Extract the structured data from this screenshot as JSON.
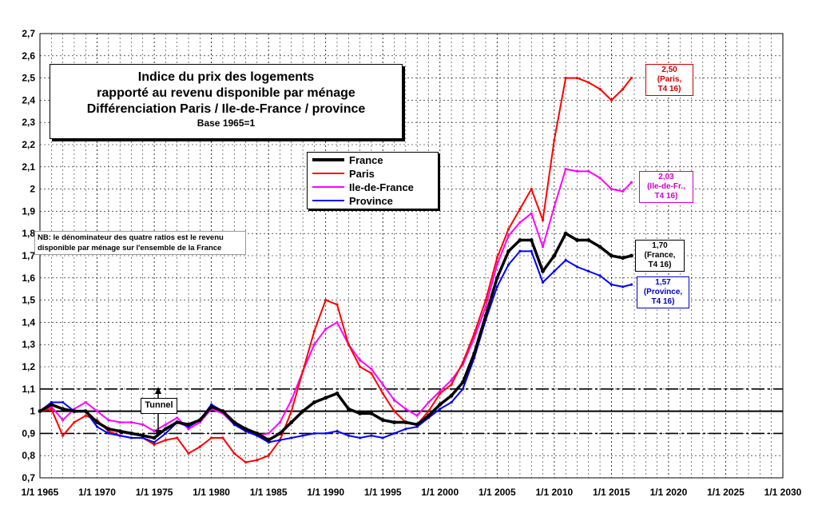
{
  "chart_data": {
    "type": "line",
    "title": "Indice du prix des logements rapporté au revenu disponible par ménage Différenciation Paris / Ile-de-France / province",
    "title_lines": [
      "Indice du prix des logements",
      "rapporté au revenu disponible par ménage",
      "Différenciation Paris / Ile-de-France / province"
    ],
    "subtitle": "Base 1965=1",
    "xlabel": "",
    "ylabel": "",
    "xlim": [
      1965,
      2030
    ],
    "ylim": [
      0.7,
      2.7
    ],
    "ytick_step": 0.1,
    "ytick_labels": [
      "0,7",
      "0,8",
      "0,9",
      "1",
      "1,1",
      "1,2",
      "1,3",
      "1,4",
      "1,5",
      "1,6",
      "1,7",
      "1,8",
      "1,9",
      "2",
      "2,1",
      "2,2",
      "2,3",
      "2,4",
      "2,5",
      "2,6",
      "2,7"
    ],
    "xtick_values": [
      1965,
      1970,
      1975,
      1980,
      1985,
      1990,
      1995,
      2000,
      2005,
      2010,
      2015,
      2020,
      2025,
      2030
    ],
    "xtick_labels": [
      "1/1 1965",
      "1/1 1970",
      "1/1 1975",
      "1/1 1980",
      "1/1 1985",
      "1/1 1990",
      "1/1 1995",
      "1/1 2000",
      "1/1 2005",
      "1/1 2010",
      "1/1 2015",
      "1/1 2020",
      "1/1 2025",
      "1/1 2030"
    ],
    "grid": true,
    "legend_position": "upper-center",
    "reference_lines": [
      {
        "y": 1.0,
        "style": "solid"
      },
      {
        "y": 1.1,
        "style": "dash-dot"
      },
      {
        "y": 0.9,
        "style": "dash-dot"
      }
    ],
    "series": [
      {
        "name": "France",
        "color": "#000000",
        "width": 3.5,
        "points": [
          [
            1965,
            1.0
          ],
          [
            1966,
            1.03
          ],
          [
            1967,
            1.01
          ],
          [
            1968,
            1.0
          ],
          [
            1969,
            1.0
          ],
          [
            1970,
            0.95
          ],
          [
            1971,
            0.92
          ],
          [
            1972,
            0.91
          ],
          [
            1973,
            0.9
          ],
          [
            1974,
            0.89
          ],
          [
            1975,
            0.88
          ],
          [
            1976,
            0.92
          ],
          [
            1977,
            0.95
          ],
          [
            1978,
            0.94
          ],
          [
            1979,
            0.96
          ],
          [
            1980,
            1.02
          ],
          [
            1981,
            1.0
          ],
          [
            1982,
            0.95
          ],
          [
            1983,
            0.92
          ],
          [
            1984,
            0.9
          ],
          [
            1985,
            0.87
          ],
          [
            1986,
            0.9
          ],
          [
            1987,
            0.95
          ],
          [
            1988,
            1.0
          ],
          [
            1989,
            1.04
          ],
          [
            1990,
            1.06
          ],
          [
            1991,
            1.08
          ],
          [
            1992,
            1.01
          ],
          [
            1993,
            0.99
          ],
          [
            1994,
            0.99
          ],
          [
            1995,
            0.96
          ],
          [
            1996,
            0.95
          ],
          [
            1997,
            0.95
          ],
          [
            1998,
            0.94
          ],
          [
            1999,
            0.98
          ],
          [
            2000,
            1.03
          ],
          [
            2001,
            1.07
          ],
          [
            2002,
            1.13
          ],
          [
            2003,
            1.26
          ],
          [
            2004,
            1.43
          ],
          [
            2005,
            1.6
          ],
          [
            2006,
            1.72
          ],
          [
            2007,
            1.77
          ],
          [
            2008,
            1.77
          ],
          [
            2009,
            1.63
          ],
          [
            2010,
            1.7
          ],
          [
            2011,
            1.8
          ],
          [
            2012,
            1.77
          ],
          [
            2013,
            1.77
          ],
          [
            2014,
            1.74
          ],
          [
            2015,
            1.7
          ],
          [
            2016,
            1.69
          ],
          [
            2016.75,
            1.7
          ]
        ],
        "end_label": {
          "lines": [
            "1,70",
            "(France,",
            "T4 16)"
          ],
          "value": 1.7
        }
      },
      {
        "name": "Paris",
        "color": "#ff0000",
        "width": 2,
        "points": [
          [
            1965,
            1.0
          ],
          [
            1966,
            1.01
          ],
          [
            1967,
            0.89
          ],
          [
            1968,
            0.95
          ],
          [
            1969,
            0.98
          ],
          [
            1970,
            0.96
          ],
          [
            1971,
            0.91
          ],
          [
            1972,
            0.89
          ],
          [
            1973,
            0.88
          ],
          [
            1974,
            0.88
          ],
          [
            1975,
            0.85
          ],
          [
            1976,
            0.87
          ],
          [
            1977,
            0.88
          ],
          [
            1978,
            0.81
          ],
          [
            1979,
            0.84
          ],
          [
            1980,
            0.88
          ],
          [
            1981,
            0.88
          ],
          [
            1982,
            0.81
          ],
          [
            1983,
            0.77
          ],
          [
            1984,
            0.78
          ],
          [
            1985,
            0.8
          ],
          [
            1986,
            0.87
          ],
          [
            1987,
            1.0
          ],
          [
            1988,
            1.18
          ],
          [
            1989,
            1.36
          ],
          [
            1990,
            1.5
          ],
          [
            1991,
            1.48
          ],
          [
            1992,
            1.3
          ],
          [
            1993,
            1.2
          ],
          [
            1994,
            1.17
          ],
          [
            1995,
            1.08
          ],
          [
            1996,
            1.0
          ],
          [
            1997,
            0.95
          ],
          [
            1998,
            0.94
          ],
          [
            1999,
            1.0
          ],
          [
            2000,
            1.08
          ],
          [
            2001,
            1.12
          ],
          [
            2002,
            1.22
          ],
          [
            2003,
            1.35
          ],
          [
            2004,
            1.5
          ],
          [
            2005,
            1.69
          ],
          [
            2006,
            1.82
          ],
          [
            2007,
            1.91
          ],
          [
            2008,
            2.0
          ],
          [
            2009,
            1.86
          ],
          [
            2010,
            2.22
          ],
          [
            2011,
            2.5
          ],
          [
            2012,
            2.5
          ],
          [
            2013,
            2.48
          ],
          [
            2014,
            2.45
          ],
          [
            2015,
            2.4
          ],
          [
            2016,
            2.45
          ],
          [
            2016.75,
            2.5
          ]
        ],
        "end_label": {
          "lines": [
            "2,50",
            "(Paris,",
            "T4 16)"
          ],
          "value": 2.5
        }
      },
      {
        "name": "Ile-de-France",
        "color": "#ff00ff",
        "width": 2,
        "points": [
          [
            1965,
            1.0
          ],
          [
            1966,
            1.02
          ],
          [
            1967,
            0.96
          ],
          [
            1968,
            1.01
          ],
          [
            1969,
            1.04
          ],
          [
            1970,
            1.0
          ],
          [
            1971,
            0.96
          ],
          [
            1972,
            0.95
          ],
          [
            1973,
            0.95
          ],
          [
            1974,
            0.94
          ],
          [
            1975,
            0.91
          ],
          [
            1976,
            0.94
          ],
          [
            1977,
            0.97
          ],
          [
            1978,
            0.92
          ],
          [
            1979,
            0.95
          ],
          [
            1980,
            1.01
          ],
          [
            1981,
            0.99
          ],
          [
            1982,
            0.94
          ],
          [
            1983,
            0.91
          ],
          [
            1984,
            0.89
          ],
          [
            1985,
            0.9
          ],
          [
            1986,
            0.95
          ],
          [
            1987,
            1.05
          ],
          [
            1988,
            1.18
          ],
          [
            1989,
            1.3
          ],
          [
            1990,
            1.37
          ],
          [
            1991,
            1.4
          ],
          [
            1992,
            1.3
          ],
          [
            1993,
            1.23
          ],
          [
            1994,
            1.19
          ],
          [
            1995,
            1.12
          ],
          [
            1996,
            1.05
          ],
          [
            1997,
            1.01
          ],
          [
            1998,
            0.98
          ],
          [
            1999,
            1.04
          ],
          [
            2000,
            1.09
          ],
          [
            2001,
            1.14
          ],
          [
            2002,
            1.21
          ],
          [
            2003,
            1.33
          ],
          [
            2004,
            1.47
          ],
          [
            2005,
            1.66
          ],
          [
            2006,
            1.79
          ],
          [
            2007,
            1.85
          ],
          [
            2008,
            1.89
          ],
          [
            2009,
            1.74
          ],
          [
            2010,
            1.92
          ],
          [
            2011,
            2.09
          ],
          [
            2012,
            2.08
          ],
          [
            2013,
            2.08
          ],
          [
            2014,
            2.05
          ],
          [
            2015,
            2.0
          ],
          [
            2016,
            1.99
          ],
          [
            2016.75,
            2.03
          ]
        ],
        "end_label": {
          "lines": [
            "2,03",
            "(Ile-de-Fr.,",
            "T4 16)"
          ],
          "value": 2.03
        }
      },
      {
        "name": "Province",
        "color": "#0000ff",
        "width": 2,
        "points": [
          [
            1965,
            1.0
          ],
          [
            1966,
            1.04
          ],
          [
            1967,
            1.04
          ],
          [
            1968,
            1.0
          ],
          [
            1969,
            1.0
          ],
          [
            1970,
            0.93
          ],
          [
            1971,
            0.9
          ],
          [
            1972,
            0.89
          ],
          [
            1973,
            0.88
          ],
          [
            1974,
            0.88
          ],
          [
            1975,
            0.86
          ],
          [
            1976,
            0.9
          ],
          [
            1977,
            0.95
          ],
          [
            1978,
            0.93
          ],
          [
            1979,
            0.96
          ],
          [
            1980,
            1.03
          ],
          [
            1981,
            1.0
          ],
          [
            1982,
            0.94
          ],
          [
            1983,
            0.91
          ],
          [
            1984,
            0.89
          ],
          [
            1985,
            0.86
          ],
          [
            1986,
            0.87
          ],
          [
            1987,
            0.88
          ],
          [
            1988,
            0.89
          ],
          [
            1989,
            0.9
          ],
          [
            1990,
            0.9
          ],
          [
            1991,
            0.91
          ],
          [
            1992,
            0.89
          ],
          [
            1993,
            0.88
          ],
          [
            1994,
            0.89
          ],
          [
            1995,
            0.88
          ],
          [
            1996,
            0.9
          ],
          [
            1997,
            0.92
          ],
          [
            1998,
            0.93
          ],
          [
            1999,
            0.97
          ],
          [
            2000,
            1.01
          ],
          [
            2001,
            1.04
          ],
          [
            2002,
            1.1
          ],
          [
            2003,
            1.24
          ],
          [
            2004,
            1.41
          ],
          [
            2005,
            1.56
          ],
          [
            2006,
            1.66
          ],
          [
            2007,
            1.72
          ],
          [
            2008,
            1.72
          ],
          [
            2009,
            1.58
          ],
          [
            2010,
            1.63
          ],
          [
            2011,
            1.68
          ],
          [
            2012,
            1.65
          ],
          [
            2013,
            1.63
          ],
          [
            2014,
            1.61
          ],
          [
            2015,
            1.57
          ],
          [
            2016,
            1.56
          ],
          [
            2016.75,
            1.57
          ]
        ],
        "end_label": {
          "lines": [
            "1,57",
            "(Province,",
            "T4 16)"
          ],
          "value": 1.57
        }
      }
    ],
    "note": "NB: le dénominateur des quatre ratios est le revenu disponible par ménage sur l'ensemble de la France",
    "note_lines": [
      "NB: le dénominateur des quatre ratios est le revenu",
      "disponible par ménage sur l'ensemble de la France"
    ],
    "annotation": "Tunnel"
  }
}
